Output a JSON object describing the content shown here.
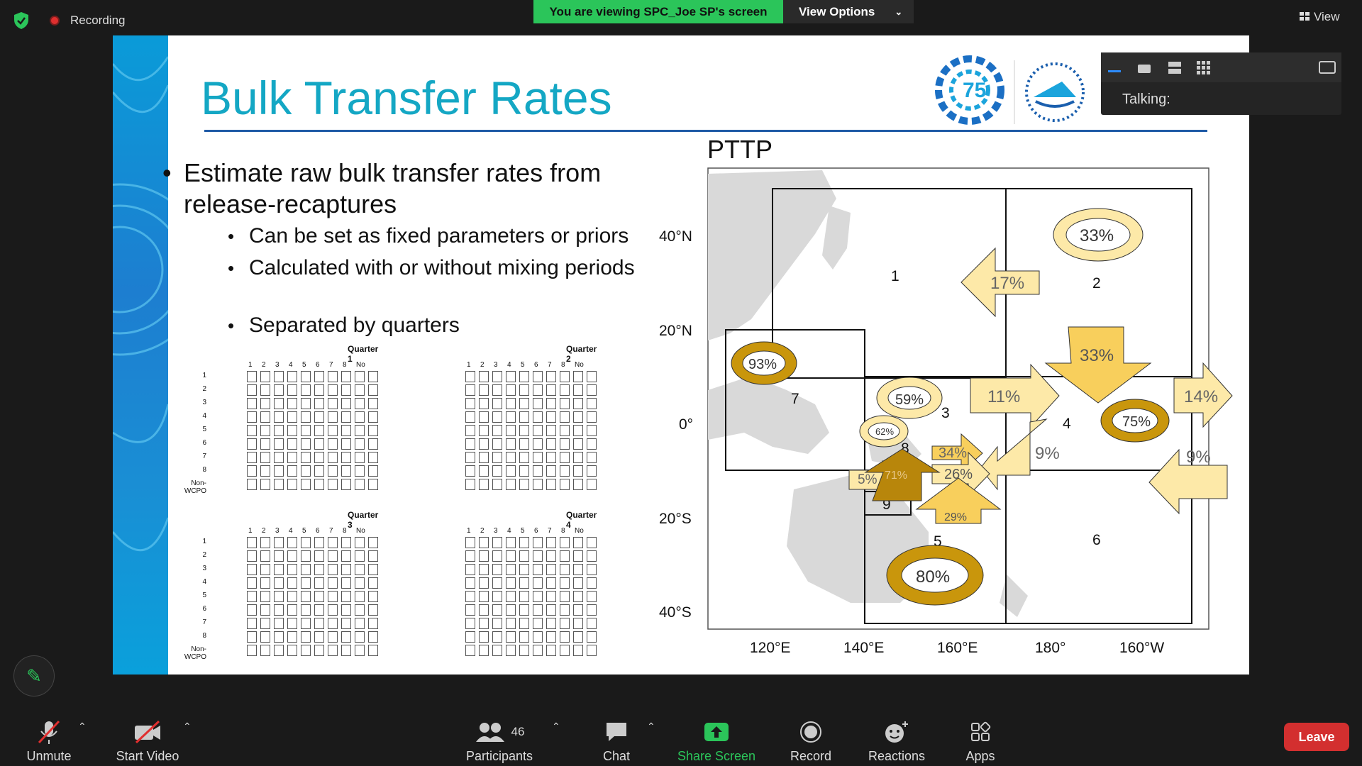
{
  "topbar": {
    "recording_label": "Recording",
    "viewing_banner": "You are viewing SPC_Joe SP's screen",
    "view_options_label": "View Options",
    "view_label": "View"
  },
  "slide": {
    "title": "Bulk Transfer Rates",
    "bullet_main": "Estimate raw bulk transfer rates from release-recaptures",
    "sub_bullets": [
      "Can be set as fixed parameters or priors",
      "Calculated with or without mixing periods",
      "Separated by quarters"
    ],
    "quarters": [
      {
        "title": "Quarter 1"
      },
      {
        "title": "Quarter 2"
      },
      {
        "title": "Quarter 3"
      },
      {
        "title": "Quarter 4"
      }
    ],
    "matrix_cols": [
      "1",
      "2",
      "3",
      "4",
      "5",
      "6",
      "7",
      "8",
      "No"
    ],
    "matrix_rows": [
      "1",
      "2",
      "3",
      "4",
      "5",
      "6",
      "7",
      "8",
      "Non-WCPO"
    ],
    "map": {
      "title": "PTTP",
      "y_ticks": [
        "40°N",
        "20°N",
        "0°",
        "20°S",
        "40°S"
      ],
      "x_ticks": [
        "120°E",
        "140°E",
        "160°E",
        "180°",
        "160°W"
      ],
      "region_labels": [
        "1",
        "2",
        "3",
        "4",
        "5",
        "6",
        "7",
        "8",
        "9"
      ],
      "rates": [
        "33%",
        "17%",
        "33%",
        "11%",
        "14%",
        "75%",
        "9%",
        "9%",
        "93%",
        "59%",
        "62%",
        "34%",
        "26%",
        "5%",
        "71%",
        "29%",
        "80%"
      ]
    }
  },
  "gallery": {
    "talking_label": "Talking:"
  },
  "toolbar": {
    "unmute": "Unmute",
    "start_video": "Start Video",
    "participants": "Participants",
    "participants_count": "46",
    "chat": "Chat",
    "share_screen": "Share Screen",
    "record": "Record",
    "reactions": "Reactions",
    "apps": "Apps",
    "leave": "Leave"
  },
  "colors": {
    "share_green": "#2bc55a",
    "leave_red": "#d32f2f",
    "title_teal": "#14a7c4",
    "arrow_gold": "#c9960c",
    "arrow_light": "#fde9a8"
  }
}
